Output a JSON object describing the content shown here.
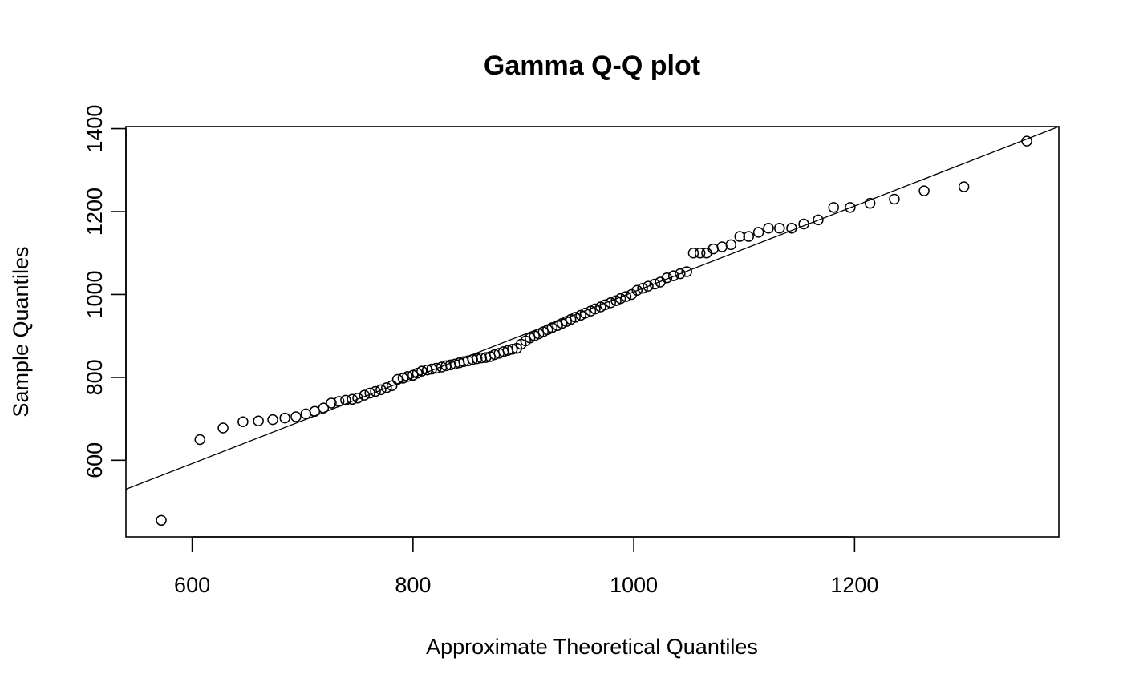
{
  "chart_data": {
    "type": "scatter",
    "title": "Gamma Q-Q plot",
    "xlabel": "Approximate Theoretical Quantiles",
    "ylabel": "Sample Quantiles",
    "xlim": [
      540,
      1385
    ],
    "ylim": [
      415,
      1405
    ],
    "xticks": [
      600,
      800,
      1000,
      1200
    ],
    "xtick_labels": [
      "600",
      "800",
      "1000",
      "1200"
    ],
    "yticks": [
      600,
      800,
      1000,
      1200,
      1400
    ],
    "ytick_labels": [
      "600",
      "800",
      "1000",
      "1200",
      "1400"
    ],
    "grid": false,
    "marker": "open-circle",
    "reference_line": {
      "points": [
        [
          540,
          530
        ],
        [
          1385,
          1405
        ]
      ]
    },
    "series": [
      {
        "x": [
          572,
          607,
          628,
          646,
          660,
          673,
          684,
          694,
          703,
          711,
          719,
          726,
          733,
          739,
          745,
          750,
          756,
          761,
          766,
          771,
          776,
          781,
          786,
          791,
          795,
          800,
          804,
          808,
          813,
          817,
          821,
          826,
          830,
          834,
          838,
          842,
          846,
          850,
          854,
          858,
          862,
          866,
          870,
          874,
          878,
          882,
          886,
          890,
          894,
          898,
          902,
          906,
          910,
          914,
          918,
          922,
          926,
          931,
          935,
          939,
          943,
          947,
          952,
          956,
          961,
          965,
          970,
          974,
          979,
          984,
          988,
          993,
          998,
          1003,
          1008,
          1013,
          1019,
          1024,
          1030,
          1036,
          1042,
          1048,
          1054,
          1060,
          1066,
          1072,
          1080,
          1088,
          1096,
          1104,
          1113,
          1122,
          1132,
          1143,
          1154,
          1167,
          1181,
          1196,
          1214,
          1236,
          1263,
          1299,
          1356
        ],
        "y": [
          455,
          650,
          678,
          693,
          695,
          698,
          702,
          705,
          712,
          718,
          726,
          738,
          742,
          745,
          747,
          750,
          757,
          762,
          766,
          770,
          775,
          780,
          795,
          798,
          802,
          805,
          810,
          815,
          818,
          820,
          822,
          825,
          828,
          830,
          832,
          835,
          838,
          840,
          843,
          845,
          847,
          848,
          850,
          855,
          858,
          862,
          865,
          868,
          870,
          880,
          888,
          895,
          900,
          905,
          910,
          915,
          920,
          925,
          930,
          935,
          940,
          945,
          950,
          955,
          960,
          965,
          970,
          975,
          980,
          985,
          990,
          995,
          1000,
          1010,
          1015,
          1020,
          1025,
          1030,
          1040,
          1045,
          1050,
          1055,
          1100,
          1100,
          1100,
          1110,
          1115,
          1120,
          1140,
          1140,
          1150,
          1160,
          1160,
          1160,
          1170,
          1180,
          1210,
          1210,
          1220,
          1230,
          1250,
          1260,
          1370
        ]
      }
    ]
  }
}
